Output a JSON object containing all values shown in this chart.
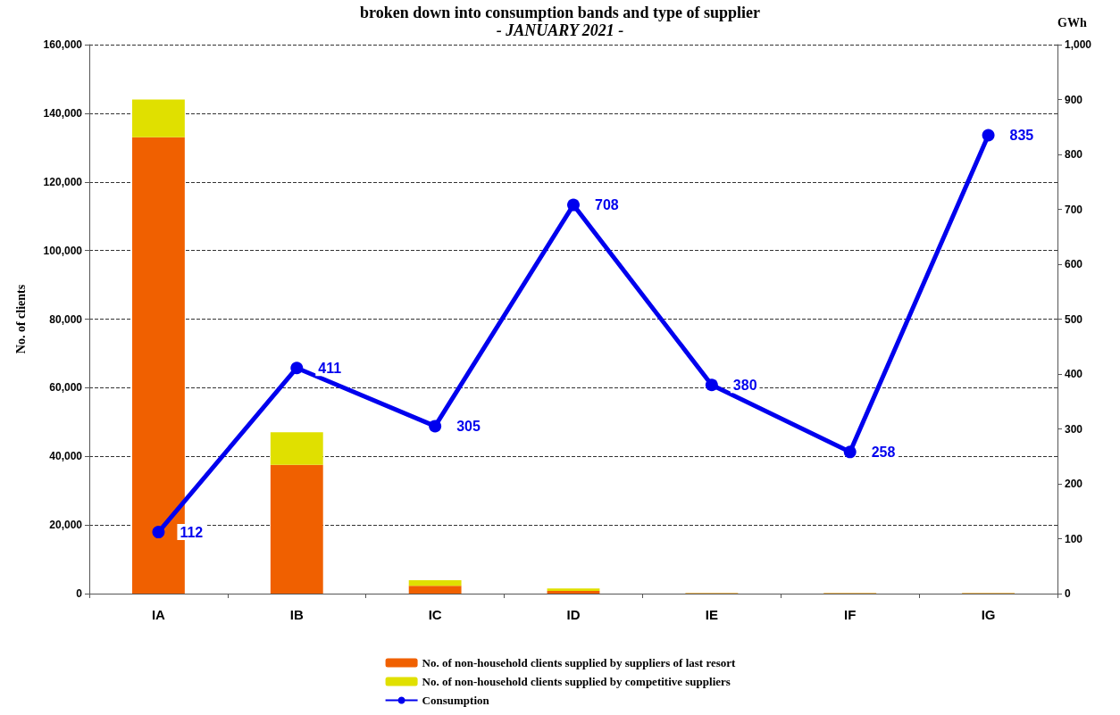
{
  "chart_data": {
    "type": "bar",
    "title": "broken down into consumption bands and type of supplier",
    "subtitle": "- JANUARY 2021 -",
    "ylabel": "No. of clients",
    "y2label": "GWh",
    "categories": [
      "IA",
      "IB",
      "IC",
      "ID",
      "IE",
      "IF",
      "IG"
    ],
    "stacked": true,
    "series": [
      {
        "name": "No. of non-household clients supplied by suppliers of last resort",
        "color": "#f06000",
        "values": [
          133000,
          37500,
          2300,
          800,
          100,
          100,
          100
        ]
      },
      {
        "name": "No. of non-household clients supplied by competitive suppliers",
        "color": "#e0e000",
        "values": [
          11000,
          9500,
          1600,
          700,
          100,
          100,
          100
        ]
      },
      {
        "name": "Consumption",
        "type": "line",
        "axis": "y2",
        "color": "#0000ee",
        "marker": "circle",
        "data_labels": true,
        "values": [
          112,
          411,
          305,
          708,
          380,
          258,
          835
        ]
      }
    ],
    "ylim": [
      0,
      160000
    ],
    "yticks": [
      {
        "value": 0,
        "label": "0"
      },
      {
        "value": 20000,
        "label": "20,000"
      },
      {
        "value": 40000,
        "label": "40,000"
      },
      {
        "value": 60000,
        "label": "60,000"
      },
      {
        "value": 80000,
        "label": "80,000"
      },
      {
        "value": 100000,
        "label": "100,000"
      },
      {
        "value": 120000,
        "label": "120,000"
      },
      {
        "value": 140000,
        "label": "140,000"
      },
      {
        "value": 160000,
        "label": "160,000"
      }
    ],
    "y2lim": [
      0,
      1000
    ],
    "y2ticks": [
      {
        "value": 0,
        "label": "0"
      },
      {
        "value": 100,
        "label": "100"
      },
      {
        "value": 200,
        "label": "200"
      },
      {
        "value": 300,
        "label": "300"
      },
      {
        "value": 400,
        "label": "400"
      },
      {
        "value": 500,
        "label": "500"
      },
      {
        "value": 600,
        "label": "600"
      },
      {
        "value": 700,
        "label": "700"
      },
      {
        "value": 800,
        "label": "800"
      },
      {
        "value": 900,
        "label": "900"
      },
      {
        "value": 1000,
        "label": "1,000"
      }
    ],
    "grid": "y",
    "legend": "bottom"
  }
}
